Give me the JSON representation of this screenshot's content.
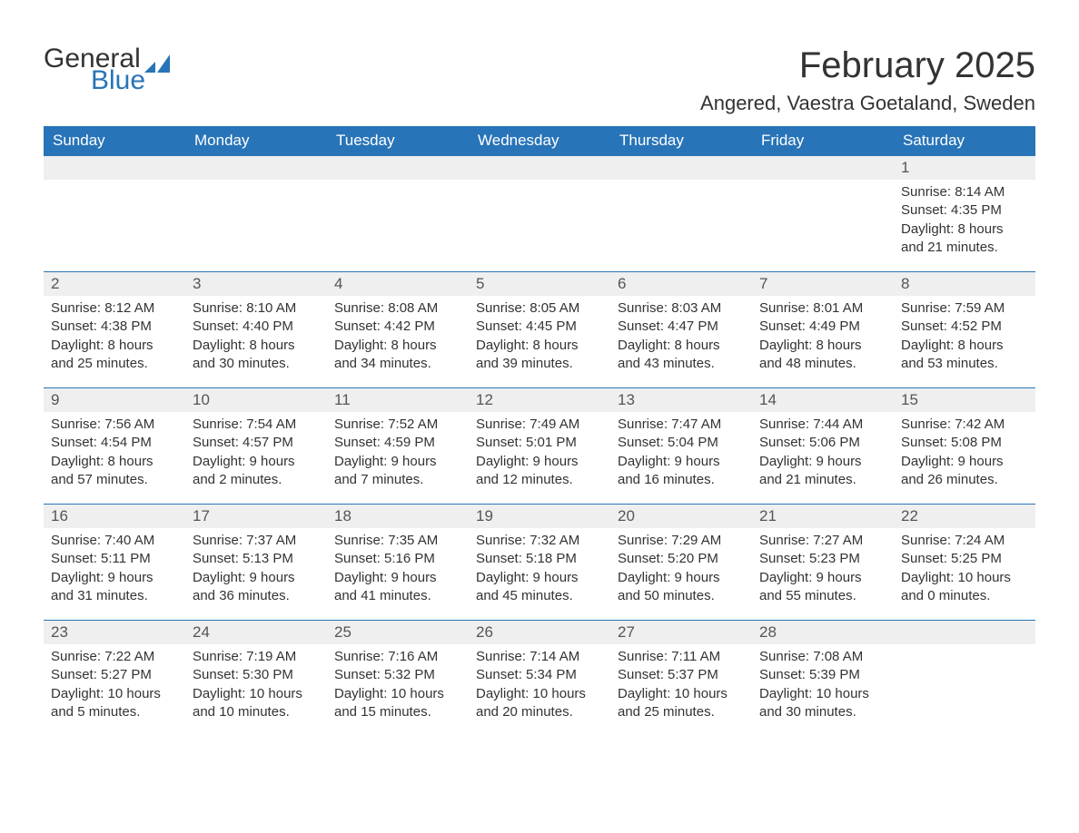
{
  "logo": {
    "text1": "General",
    "text2": "Blue",
    "flag_color": "#2874b8"
  },
  "title": "February 2025",
  "location": "Angered, Vaestra Goetaland, Sweden",
  "style": {
    "header_bg": "#2874b8",
    "header_fg": "#ffffff",
    "daynum_bg": "#efefef",
    "row_border": "#2874b8",
    "text_color": "#333333",
    "title_fontsize": 40,
    "location_fontsize": 22,
    "header_fontsize": 17,
    "body_fontsize": 15
  },
  "day_headers": [
    "Sunday",
    "Monday",
    "Tuesday",
    "Wednesday",
    "Thursday",
    "Friday",
    "Saturday"
  ],
  "weeks": [
    [
      {
        "empty": true
      },
      {
        "empty": true
      },
      {
        "empty": true
      },
      {
        "empty": true
      },
      {
        "empty": true
      },
      {
        "empty": true
      },
      {
        "num": "1",
        "sunrise": "Sunrise: 8:14 AM",
        "sunset": "Sunset: 4:35 PM",
        "daylight": "Daylight: 8 hours and 21 minutes."
      }
    ],
    [
      {
        "num": "2",
        "sunrise": "Sunrise: 8:12 AM",
        "sunset": "Sunset: 4:38 PM",
        "daylight": "Daylight: 8 hours and 25 minutes."
      },
      {
        "num": "3",
        "sunrise": "Sunrise: 8:10 AM",
        "sunset": "Sunset: 4:40 PM",
        "daylight": "Daylight: 8 hours and 30 minutes."
      },
      {
        "num": "4",
        "sunrise": "Sunrise: 8:08 AM",
        "sunset": "Sunset: 4:42 PM",
        "daylight": "Daylight: 8 hours and 34 minutes."
      },
      {
        "num": "5",
        "sunrise": "Sunrise: 8:05 AM",
        "sunset": "Sunset: 4:45 PM",
        "daylight": "Daylight: 8 hours and 39 minutes."
      },
      {
        "num": "6",
        "sunrise": "Sunrise: 8:03 AM",
        "sunset": "Sunset: 4:47 PM",
        "daylight": "Daylight: 8 hours and 43 minutes."
      },
      {
        "num": "7",
        "sunrise": "Sunrise: 8:01 AM",
        "sunset": "Sunset: 4:49 PM",
        "daylight": "Daylight: 8 hours and 48 minutes."
      },
      {
        "num": "8",
        "sunrise": "Sunrise: 7:59 AM",
        "sunset": "Sunset: 4:52 PM",
        "daylight": "Daylight: 8 hours and 53 minutes."
      }
    ],
    [
      {
        "num": "9",
        "sunrise": "Sunrise: 7:56 AM",
        "sunset": "Sunset: 4:54 PM",
        "daylight": "Daylight: 8 hours and 57 minutes."
      },
      {
        "num": "10",
        "sunrise": "Sunrise: 7:54 AM",
        "sunset": "Sunset: 4:57 PM",
        "daylight": "Daylight: 9 hours and 2 minutes."
      },
      {
        "num": "11",
        "sunrise": "Sunrise: 7:52 AM",
        "sunset": "Sunset: 4:59 PM",
        "daylight": "Daylight: 9 hours and 7 minutes."
      },
      {
        "num": "12",
        "sunrise": "Sunrise: 7:49 AM",
        "sunset": "Sunset: 5:01 PM",
        "daylight": "Daylight: 9 hours and 12 minutes."
      },
      {
        "num": "13",
        "sunrise": "Sunrise: 7:47 AM",
        "sunset": "Sunset: 5:04 PM",
        "daylight": "Daylight: 9 hours and 16 minutes."
      },
      {
        "num": "14",
        "sunrise": "Sunrise: 7:44 AM",
        "sunset": "Sunset: 5:06 PM",
        "daylight": "Daylight: 9 hours and 21 minutes."
      },
      {
        "num": "15",
        "sunrise": "Sunrise: 7:42 AM",
        "sunset": "Sunset: 5:08 PM",
        "daylight": "Daylight: 9 hours and 26 minutes."
      }
    ],
    [
      {
        "num": "16",
        "sunrise": "Sunrise: 7:40 AM",
        "sunset": "Sunset: 5:11 PM",
        "daylight": "Daylight: 9 hours and 31 minutes."
      },
      {
        "num": "17",
        "sunrise": "Sunrise: 7:37 AM",
        "sunset": "Sunset: 5:13 PM",
        "daylight": "Daylight: 9 hours and 36 minutes."
      },
      {
        "num": "18",
        "sunrise": "Sunrise: 7:35 AM",
        "sunset": "Sunset: 5:16 PM",
        "daylight": "Daylight: 9 hours and 41 minutes."
      },
      {
        "num": "19",
        "sunrise": "Sunrise: 7:32 AM",
        "sunset": "Sunset: 5:18 PM",
        "daylight": "Daylight: 9 hours and 45 minutes."
      },
      {
        "num": "20",
        "sunrise": "Sunrise: 7:29 AM",
        "sunset": "Sunset: 5:20 PM",
        "daylight": "Daylight: 9 hours and 50 minutes."
      },
      {
        "num": "21",
        "sunrise": "Sunrise: 7:27 AM",
        "sunset": "Sunset: 5:23 PM",
        "daylight": "Daylight: 9 hours and 55 minutes."
      },
      {
        "num": "22",
        "sunrise": "Sunrise: 7:24 AM",
        "sunset": "Sunset: 5:25 PM",
        "daylight": "Daylight: 10 hours and 0 minutes."
      }
    ],
    [
      {
        "num": "23",
        "sunrise": "Sunrise: 7:22 AM",
        "sunset": "Sunset: 5:27 PM",
        "daylight": "Daylight: 10 hours and 5 minutes."
      },
      {
        "num": "24",
        "sunrise": "Sunrise: 7:19 AM",
        "sunset": "Sunset: 5:30 PM",
        "daylight": "Daylight: 10 hours and 10 minutes."
      },
      {
        "num": "25",
        "sunrise": "Sunrise: 7:16 AM",
        "sunset": "Sunset: 5:32 PM",
        "daylight": "Daylight: 10 hours and 15 minutes."
      },
      {
        "num": "26",
        "sunrise": "Sunrise: 7:14 AM",
        "sunset": "Sunset: 5:34 PM",
        "daylight": "Daylight: 10 hours and 20 minutes."
      },
      {
        "num": "27",
        "sunrise": "Sunrise: 7:11 AM",
        "sunset": "Sunset: 5:37 PM",
        "daylight": "Daylight: 10 hours and 25 minutes."
      },
      {
        "num": "28",
        "sunrise": "Sunrise: 7:08 AM",
        "sunset": "Sunset: 5:39 PM",
        "daylight": "Daylight: 10 hours and 30 minutes."
      },
      {
        "empty": true
      }
    ]
  ]
}
